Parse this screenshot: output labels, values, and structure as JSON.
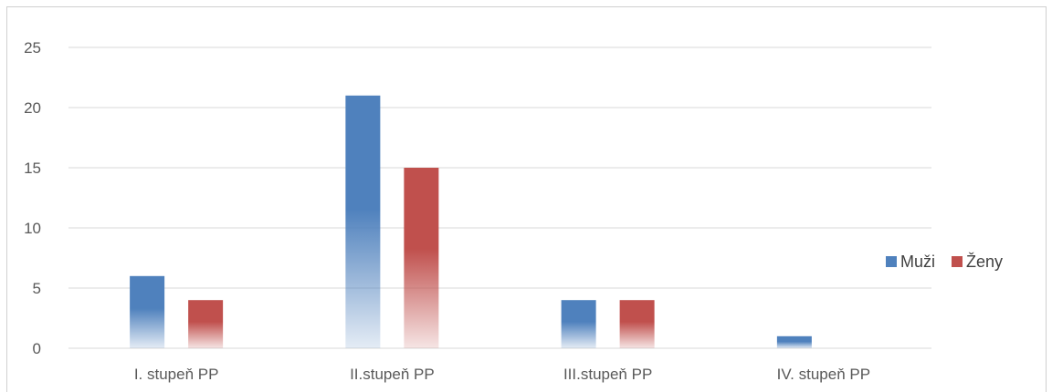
{
  "chart_data": {
    "type": "bar",
    "title": "",
    "categories": [
      "I. stupeň PP",
      "II.stupeň PP",
      "III.stupeň PP",
      "IV. stupeň PP"
    ],
    "series": [
      {
        "name": "Muži",
        "values": [
          6,
          21,
          4,
          1
        ],
        "color": "#4f81bd"
      },
      {
        "name": "Ženy",
        "values": [
          4,
          15,
          4,
          0
        ],
        "color": "#c0504d"
      }
    ],
    "ylim": [
      0,
      25
    ],
    "yticks": [
      0,
      5,
      10,
      15,
      20,
      25
    ],
    "grid": true,
    "legend": "right"
  }
}
